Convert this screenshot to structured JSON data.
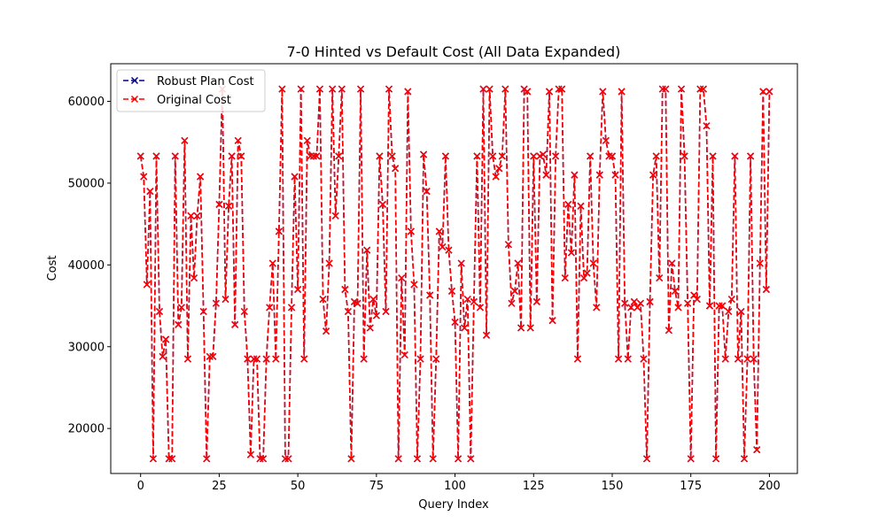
{
  "chart_data": {
    "type": "line",
    "title": "7-0 Hinted vs Default Cost (All Data Expanded)",
    "xlabel": "Query Index",
    "ylabel": "Cost",
    "xlim": [
      -9.5,
      208.9
    ],
    "ylim": [
      14500,
      64600
    ],
    "xticks": [
      0,
      25,
      50,
      75,
      100,
      125,
      150,
      175,
      200
    ],
    "yticks": [
      20000,
      30000,
      40000,
      50000,
      60000
    ],
    "xtick_labels": [
      "0",
      "25",
      "50",
      "75",
      "100",
      "125",
      "150",
      "175",
      "200"
    ],
    "ytick_labels": [
      "20000",
      "30000",
      "40000",
      "50000",
      "60000"
    ],
    "grid": false,
    "legend_position": "top-left",
    "series": [
      {
        "name": "Robust Plan Cost",
        "color": "#00008b",
        "marker": "x",
        "linestyle": "dashed",
        "values": [
          53300,
          50800,
          37600,
          49000,
          16300,
          53300,
          34300,
          28800,
          30900,
          16300,
          16300,
          53300,
          32700,
          34800,
          55200,
          28500,
          46000,
          38400,
          46000,
          50800,
          34300,
          16300,
          28800,
          28800,
          35300,
          47400,
          61500,
          35800,
          47200,
          53300,
          32700,
          55200,
          53300,
          34300,
          28500,
          16800,
          28500,
          28500,
          16300,
          16300,
          28500,
          34800,
          40200,
          28500,
          44100,
          61500,
          16300,
          16300,
          34800,
          50800,
          37000,
          61500,
          28500,
          55200,
          53300,
          53300,
          53300,
          61500,
          35800,
          31900,
          40200,
          61500,
          46000,
          53300,
          61500,
          37000,
          34300,
          16300,
          35500,
          35300,
          61500,
          28500,
          41800,
          32300,
          35800,
          33800,
          53300,
          47400,
          34300,
          61500,
          53300,
          51800,
          16300,
          38400,
          29000,
          61200,
          44100,
          37600,
          16300,
          28500,
          53500,
          49000,
          36300,
          16300,
          28500,
          44100,
          42200,
          53300,
          41800,
          36800,
          33000,
          16300,
          40200,
          32300,
          35800,
          16300,
          35500,
          53300,
          34800,
          61500,
          31400,
          61500,
          53300,
          50800,
          51800,
          53300,
          61500,
          42500,
          35300,
          36800,
          40200,
          32300,
          61500,
          61200,
          32300,
          53300,
          35500,
          53300,
          53500,
          51000,
          61200,
          33200,
          53300,
          61500,
          61500,
          38400,
          47400,
          41500,
          51000,
          28500,
          47200,
          38400,
          39000,
          53300,
          40200,
          34800,
          51000,
          61200,
          55200,
          53300,
          53300,
          51000,
          28500,
          61200,
          35300,
          28500,
          34800,
          35500,
          34800,
          35300,
          28500,
          16300,
          35500,
          51000,
          53300,
          38400,
          61500,
          61500,
          32000,
          40200,
          36800,
          34800,
          61500,
          53300,
          35300,
          16300,
          36300,
          35800,
          61500,
          61500,
          57000,
          35000,
          53300,
          16300,
          35000,
          35000,
          28500,
          34300,
          35800,
          53300,
          28500,
          34300,
          16300,
          28500,
          53300,
          28500,
          17400,
          40200,
          61200,
          37000,
          61200
        ]
      },
      {
        "name": "Original Cost",
        "color": "#ff0000",
        "marker": "x",
        "linestyle": "dashed",
        "values": [
          53300,
          50800,
          37600,
          49000,
          16300,
          53300,
          34300,
          28800,
          30900,
          16300,
          16300,
          53300,
          32700,
          34800,
          55200,
          28500,
          46000,
          38400,
          46000,
          50800,
          34300,
          16300,
          28800,
          28800,
          35300,
          47400,
          61500,
          35800,
          47200,
          53300,
          32700,
          55200,
          53300,
          34300,
          28500,
          16800,
          28500,
          28500,
          16300,
          16300,
          28500,
          34800,
          40200,
          28500,
          44100,
          61500,
          16300,
          16300,
          34800,
          50800,
          37000,
          61500,
          28500,
          55200,
          53300,
          53300,
          53300,
          61500,
          35800,
          31900,
          40200,
          61500,
          46000,
          53300,
          61500,
          37000,
          34300,
          16300,
          35500,
          35300,
          61500,
          28500,
          41800,
          32300,
          35800,
          33800,
          53300,
          47400,
          34300,
          61500,
          53300,
          51800,
          16300,
          38400,
          29000,
          61200,
          44100,
          37600,
          16300,
          28500,
          53500,
          49000,
          36300,
          16300,
          28500,
          44100,
          42200,
          53300,
          41800,
          36800,
          33000,
          16300,
          40200,
          32300,
          35800,
          16300,
          35500,
          53300,
          34800,
          61500,
          31400,
          61500,
          53300,
          50800,
          51800,
          53300,
          61500,
          42500,
          35300,
          36800,
          40200,
          32300,
          61500,
          61200,
          32300,
          53300,
          35500,
          53300,
          53500,
          51000,
          61200,
          33200,
          53300,
          61500,
          61500,
          38400,
          47400,
          41500,
          51000,
          28500,
          47200,
          38400,
          39000,
          53300,
          40200,
          34800,
          51000,
          61200,
          55200,
          53300,
          53300,
          51000,
          28500,
          61200,
          35300,
          28500,
          34800,
          35500,
          34800,
          35300,
          28500,
          16300,
          35500,
          51000,
          53300,
          38400,
          61500,
          61500,
          32000,
          40200,
          36800,
          34800,
          61500,
          53300,
          35300,
          16300,
          36300,
          35800,
          61500,
          61500,
          57000,
          35000,
          53300,
          16300,
          35000,
          35000,
          28500,
          34300,
          35800,
          53300,
          28500,
          34300,
          16300,
          28500,
          53300,
          28500,
          17400,
          40200,
          61200,
          37000,
          61200
        ]
      }
    ]
  }
}
